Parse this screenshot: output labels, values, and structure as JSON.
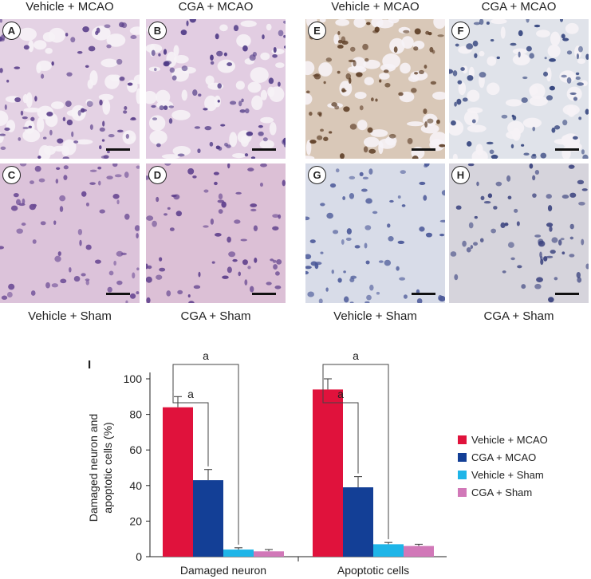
{
  "column_labels_top": [
    "Vehicle + MCAO",
    "CGA + MCAO",
    "Vehicle + MCAO",
    "CGA + MCAO"
  ],
  "column_labels_bottom": [
    "Vehicle + Sham",
    "CGA + Sham",
    "Vehicle + Sham",
    "CGA + Sham"
  ],
  "panels": [
    {
      "label": "A",
      "stain": "he",
      "bg": "#e4d2e4",
      "cell": "#5a3f8a"
    },
    {
      "label": "B",
      "stain": "he",
      "bg": "#e2cde2",
      "cell": "#4f3a86"
    },
    {
      "label": "E",
      "stain": "tunel",
      "bg": "#d9c8b8",
      "cell": "#5a3a22"
    },
    {
      "label": "F",
      "stain": "tunel",
      "bg": "#e0e3ea",
      "cell": "#2e3f7a"
    },
    {
      "label": "C",
      "stain": "he",
      "bg": "#dcc3da",
      "cell": "#6a4a94"
    },
    {
      "label": "D",
      "stain": "he",
      "bg": "#dcc0d6",
      "cell": "#5e3f8c"
    },
    {
      "label": "G",
      "stain": "tunel",
      "bg": "#d8dce8",
      "cell": "#4a5898"
    },
    {
      "label": "H",
      "stain": "tunel",
      "bg": "#d6d4dc",
      "cell": "#3a427e"
    }
  ],
  "chart_data": {
    "type": "bar",
    "panel_label": "I",
    "categories": [
      "Damaged neuron",
      "Apoptotic cells"
    ],
    "ylabel": "Damaged neuron and apoptotic cells (%)",
    "ylim": [
      0,
      100
    ],
    "yticks": [
      0,
      20,
      40,
      60,
      80,
      100
    ],
    "series": [
      {
        "name": "Vehicle + MCAO",
        "color": "#e0123c",
        "values": [
          84,
          94
        ],
        "errors": [
          6,
          6
        ]
      },
      {
        "name": "CGA + MCAO",
        "color": "#133f96",
        "values": [
          43,
          39
        ],
        "errors": [
          6,
          6
        ]
      },
      {
        "name": "Vehicle + Sham",
        "color": "#1eb5e8",
        "values": [
          4,
          7
        ],
        "errors": [
          1,
          1
        ]
      },
      {
        "name": "CGA + Sham",
        "color": "#d178b8",
        "values": [
          3,
          6
        ],
        "errors": [
          1,
          1
        ]
      }
    ],
    "significance_label": "a",
    "legend_position": "right"
  }
}
